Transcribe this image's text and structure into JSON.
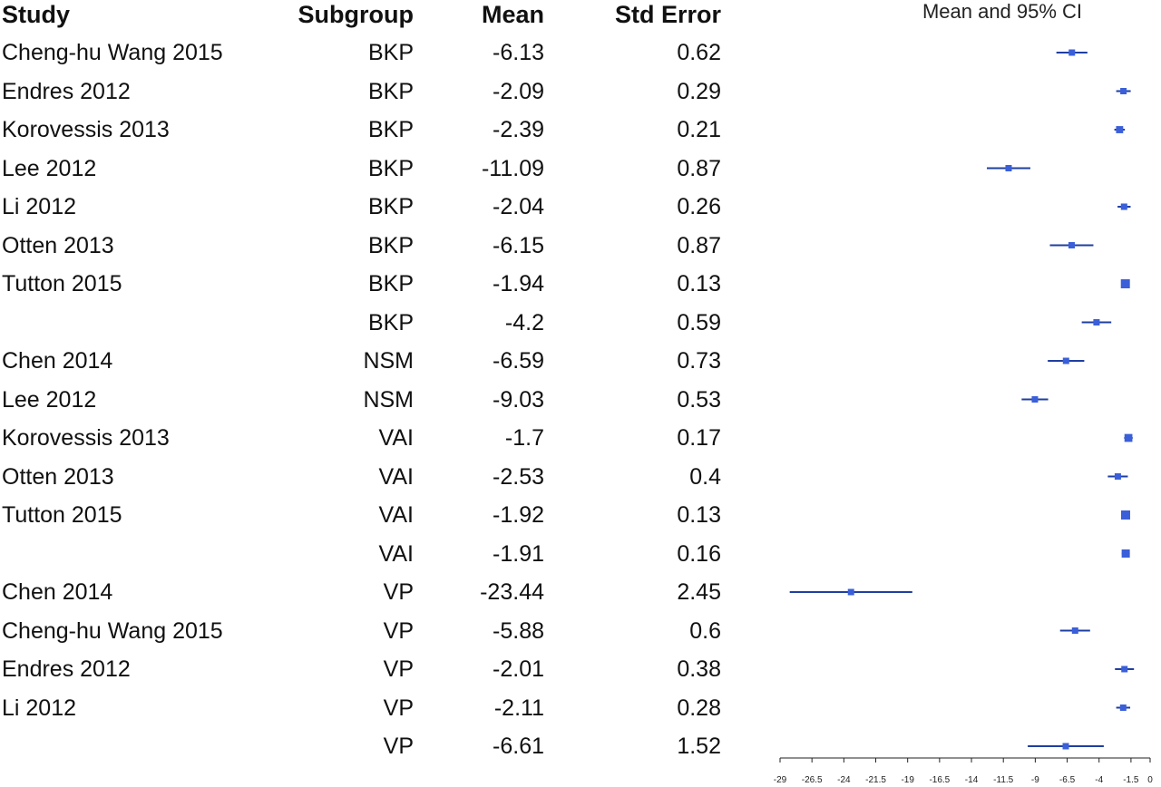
{
  "headers": {
    "study": "Study",
    "subgroup": "Subgroup",
    "mean": "Mean",
    "std_error": "Std Error",
    "plot_title": "Mean and 95% CI"
  },
  "chart_data": {
    "type": "forest",
    "title": "Mean and 95% CI",
    "xlim": [
      -29,
      0
    ],
    "ticks": [
      "-29",
      "-26.5",
      "-24",
      "-21.5",
      "-19",
      "-16.5",
      "-14",
      "-11.5",
      "-9",
      "-6.5",
      "-4",
      "-1.5",
      "0"
    ],
    "marker_color": "#3a5fd9",
    "ci_color": "#1f3fa0",
    "rows": [
      {
        "study": "Cheng-hu Wang 2015",
        "subgroup": "BKP",
        "mean": "-6.13",
        "std_error": "0.62"
      },
      {
        "study": "Endres 2012",
        "subgroup": "BKP",
        "mean": "-2.09",
        "std_error": "0.29"
      },
      {
        "study": "Korovessis 2013",
        "subgroup": "BKP",
        "mean": "-2.39",
        "std_error": "0.21"
      },
      {
        "study": "Lee 2012",
        "subgroup": "BKP",
        "mean": "-11.09",
        "std_error": "0.87"
      },
      {
        "study": "Li 2012",
        "subgroup": "BKP",
        "mean": "-2.04",
        "std_error": "0.26"
      },
      {
        "study": "Otten 2013",
        "subgroup": "BKP",
        "mean": "-6.15",
        "std_error": "0.87"
      },
      {
        "study": "Tutton 2015",
        "subgroup": "BKP",
        "mean": "-1.94",
        "std_error": "0.13"
      },
      {
        "study": "",
        "subgroup": "BKP",
        "mean": "-4.2",
        "std_error": "0.59"
      },
      {
        "study": "Chen 2014",
        "subgroup": "NSM",
        "mean": "-6.59",
        "std_error": "0.73"
      },
      {
        "study": "Lee 2012",
        "subgroup": "NSM",
        "mean": "-9.03",
        "std_error": "0.53"
      },
      {
        "study": "Korovessis 2013",
        "subgroup": "VAI",
        "mean": "-1.7",
        "std_error": "0.17"
      },
      {
        "study": "Otten 2013",
        "subgroup": "VAI",
        "mean": "-2.53",
        "std_error": "0.4"
      },
      {
        "study": "Tutton 2015",
        "subgroup": "VAI",
        "mean": "-1.92",
        "std_error": "0.13"
      },
      {
        "study": "",
        "subgroup": "VAI",
        "mean": "-1.91",
        "std_error": "0.16"
      },
      {
        "study": "Chen 2014",
        "subgroup": "VP",
        "mean": "-23.44",
        "std_error": "2.45"
      },
      {
        "study": "Cheng-hu Wang 2015",
        "subgroup": "VP",
        "mean": "-5.88",
        "std_error": "0.6"
      },
      {
        "study": "Endres 2012",
        "subgroup": "VP",
        "mean": "-2.01",
        "std_error": "0.38"
      },
      {
        "study": "Li 2012",
        "subgroup": "VP",
        "mean": "-2.11",
        "std_error": "0.28"
      },
      {
        "study": "",
        "subgroup": "VP",
        "mean": "-6.61",
        "std_error": "1.52"
      }
    ]
  }
}
